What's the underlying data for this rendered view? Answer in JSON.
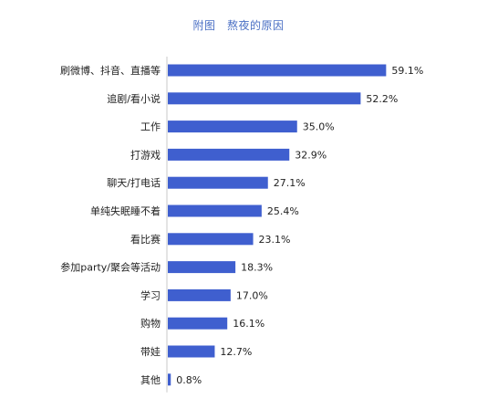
{
  "chart_data": {
    "type": "bar",
    "orientation": "horizontal",
    "title": "附图　熬夜的原因",
    "categories": [
      "刷微博、抖音、直播等",
      "追剧/看小说",
      "工作",
      "打游戏",
      "聊天/打电话",
      "单纯失眠睡不着",
      "看比赛",
      "参加party/聚会等活动",
      "学习",
      "购物",
      "带娃",
      "其他"
    ],
    "values": [
      59.1,
      52.2,
      35.0,
      32.9,
      27.1,
      25.4,
      23.1,
      18.3,
      17.0,
      16.1,
      12.7,
      0.8
    ],
    "value_labels": [
      "59.1%",
      "52.2%",
      "35.0%",
      "32.9%",
      "27.1%",
      "25.4%",
      "23.1%",
      "18.3%",
      "17.0%",
      "16.1%",
      "12.7%",
      "0.8%"
    ],
    "unit": "%",
    "xlim": [
      0,
      60
    ],
    "grid": false,
    "legend": "none",
    "bar_color": "#3f5fcf",
    "axis_color": "#c8c8c8"
  }
}
